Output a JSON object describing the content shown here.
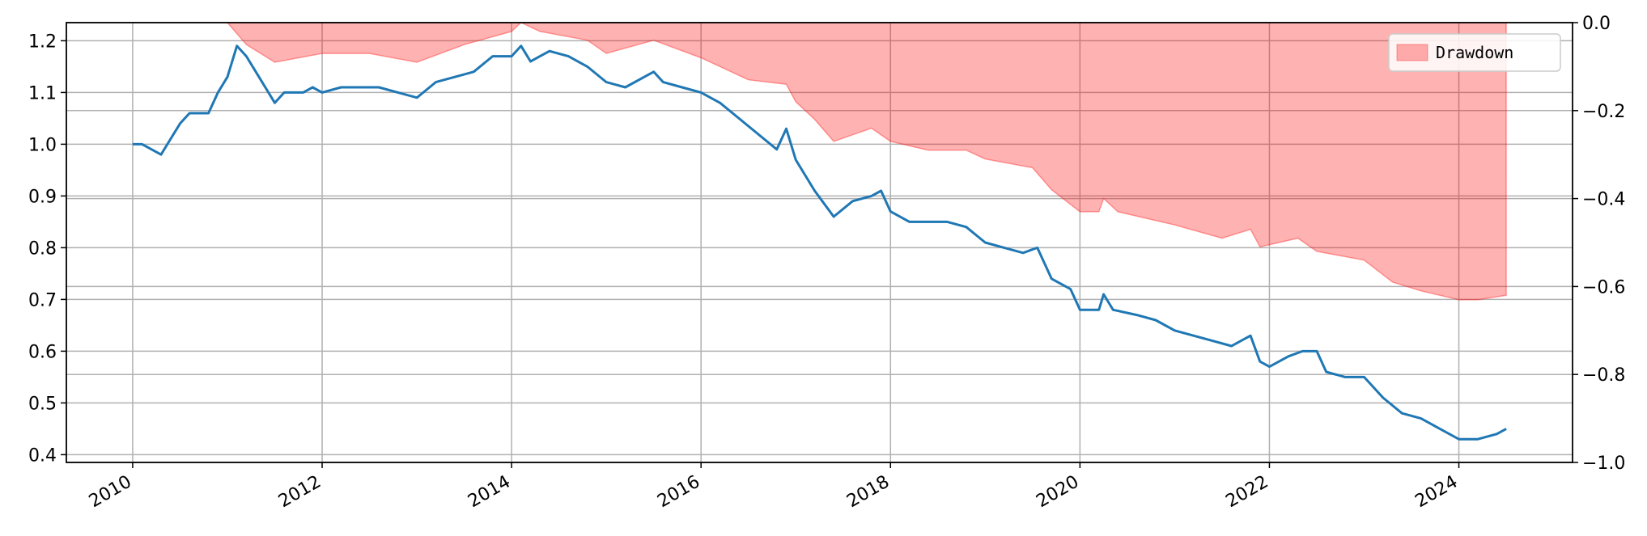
{
  "chart_data": {
    "type": "line",
    "title": "",
    "xlabel": "",
    "ylabel": "",
    "x_range": [
      2009.3,
      2025.2
    ],
    "x_ticks": [
      2010,
      2012,
      2014,
      2016,
      2018,
      2020,
      2022,
      2024
    ],
    "x_tick_labels": [
      "2010",
      "2012",
      "2014",
      "2016",
      "2018",
      "2020",
      "2022",
      "2024"
    ],
    "ylim_left": [
      0.385,
      1.235
    ],
    "y_ticks_left": [
      0.4,
      0.5,
      0.6,
      0.7,
      0.8,
      0.9,
      1.0,
      1.1,
      1.2
    ],
    "y_tick_labels_left": [
      "0.4",
      "0.5",
      "0.6",
      "0.7",
      "0.8",
      "0.9",
      "1.0",
      "1.1",
      "1.2"
    ],
    "ylim_right": [
      -1.0,
      0.0
    ],
    "y_ticks_right": [
      0.0,
      -0.2,
      -0.4,
      -0.6,
      -0.8,
      -1.0
    ],
    "y_tick_labels_right": [
      "0.0",
      "−0.2",
      "−0.4",
      "−0.6",
      "−0.8",
      "−1.0"
    ],
    "grid": true,
    "legend": {
      "position": "top-right",
      "entries": [
        "Drawdown"
      ]
    },
    "series": [
      {
        "axis": "left",
        "kind": "line",
        "color": "#1f77b4",
        "points": [
          [
            2010.0,
            1.0
          ],
          [
            2010.1,
            1.0
          ],
          [
            2010.2,
            0.99
          ],
          [
            2010.3,
            0.98
          ],
          [
            2010.4,
            1.01
          ],
          [
            2010.5,
            1.04
          ],
          [
            2010.6,
            1.06
          ],
          [
            2010.8,
            1.06
          ],
          [
            2010.9,
            1.1
          ],
          [
            2011.0,
            1.13
          ],
          [
            2011.1,
            1.19
          ],
          [
            2011.2,
            1.17
          ],
          [
            2011.3,
            1.14
          ],
          [
            2011.4,
            1.11
          ],
          [
            2011.5,
            1.08
          ],
          [
            2011.6,
            1.1
          ],
          [
            2011.8,
            1.1
          ],
          [
            2011.9,
            1.11
          ],
          [
            2012.0,
            1.1
          ],
          [
            2012.2,
            1.11
          ],
          [
            2012.4,
            1.11
          ],
          [
            2012.6,
            1.11
          ],
          [
            2012.8,
            1.1
          ],
          [
            2013.0,
            1.09
          ],
          [
            2013.2,
            1.12
          ],
          [
            2013.4,
            1.13
          ],
          [
            2013.6,
            1.14
          ],
          [
            2013.8,
            1.17
          ],
          [
            2014.0,
            1.17
          ],
          [
            2014.1,
            1.19
          ],
          [
            2014.2,
            1.16
          ],
          [
            2014.3,
            1.17
          ],
          [
            2014.4,
            1.18
          ],
          [
            2014.6,
            1.17
          ],
          [
            2014.8,
            1.15
          ],
          [
            2015.0,
            1.12
          ],
          [
            2015.2,
            1.11
          ],
          [
            2015.4,
            1.13
          ],
          [
            2015.5,
            1.14
          ],
          [
            2015.6,
            1.12
          ],
          [
            2015.8,
            1.11
          ],
          [
            2016.0,
            1.1
          ],
          [
            2016.2,
            1.08
          ],
          [
            2016.4,
            1.05
          ],
          [
            2016.6,
            1.02
          ],
          [
            2016.8,
            0.99
          ],
          [
            2016.9,
            1.03
          ],
          [
            2017.0,
            0.97
          ],
          [
            2017.2,
            0.91
          ],
          [
            2017.4,
            0.86
          ],
          [
            2017.6,
            0.89
          ],
          [
            2017.8,
            0.9
          ],
          [
            2017.9,
            0.91
          ],
          [
            2018.0,
            0.87
          ],
          [
            2018.2,
            0.85
          ],
          [
            2018.4,
            0.85
          ],
          [
            2018.6,
            0.85
          ],
          [
            2018.8,
            0.84
          ],
          [
            2019.0,
            0.81
          ],
          [
            2019.2,
            0.8
          ],
          [
            2019.4,
            0.79
          ],
          [
            2019.55,
            0.8
          ],
          [
            2019.7,
            0.74
          ],
          [
            2019.9,
            0.72
          ],
          [
            2020.0,
            0.68
          ],
          [
            2020.2,
            0.68
          ],
          [
            2020.25,
            0.71
          ],
          [
            2020.35,
            0.68
          ],
          [
            2020.6,
            0.67
          ],
          [
            2020.8,
            0.66
          ],
          [
            2021.0,
            0.64
          ],
          [
            2021.2,
            0.63
          ],
          [
            2021.4,
            0.62
          ],
          [
            2021.6,
            0.61
          ],
          [
            2021.8,
            0.63
          ],
          [
            2021.9,
            0.58
          ],
          [
            2022.0,
            0.57
          ],
          [
            2022.2,
            0.59
          ],
          [
            2022.35,
            0.6
          ],
          [
            2022.5,
            0.6
          ],
          [
            2022.6,
            0.56
          ],
          [
            2022.8,
            0.55
          ],
          [
            2023.0,
            0.55
          ],
          [
            2023.2,
            0.51
          ],
          [
            2023.4,
            0.48
          ],
          [
            2023.6,
            0.47
          ],
          [
            2023.8,
            0.45
          ],
          [
            2024.0,
            0.43
          ],
          [
            2024.2,
            0.43
          ],
          [
            2024.4,
            0.44
          ],
          [
            2024.5,
            0.45
          ]
        ]
      },
      {
        "axis": "right",
        "kind": "area",
        "name": "Drawdown",
        "color": "#ff0000",
        "fill_opacity": 0.3,
        "points": [
          [
            2010.0,
            0.0
          ],
          [
            2010.5,
            0.0
          ],
          [
            2011.0,
            0.0
          ],
          [
            2011.2,
            -0.05
          ],
          [
            2011.5,
            -0.09
          ],
          [
            2012.0,
            -0.07
          ],
          [
            2012.5,
            -0.07
          ],
          [
            2013.0,
            -0.09
          ],
          [
            2013.5,
            -0.05
          ],
          [
            2014.0,
            -0.02
          ],
          [
            2014.1,
            0.0
          ],
          [
            2014.3,
            -0.02
          ],
          [
            2014.8,
            -0.04
          ],
          [
            2015.0,
            -0.07
          ],
          [
            2015.5,
            -0.04
          ],
          [
            2016.0,
            -0.08
          ],
          [
            2016.5,
            -0.13
          ],
          [
            2016.9,
            -0.14
          ],
          [
            2017.0,
            -0.18
          ],
          [
            2017.2,
            -0.22
          ],
          [
            2017.4,
            -0.27
          ],
          [
            2017.8,
            -0.24
          ],
          [
            2018.0,
            -0.27
          ],
          [
            2018.4,
            -0.29
          ],
          [
            2018.8,
            -0.29
          ],
          [
            2019.0,
            -0.31
          ],
          [
            2019.5,
            -0.33
          ],
          [
            2019.7,
            -0.38
          ],
          [
            2020.0,
            -0.43
          ],
          [
            2020.2,
            -0.43
          ],
          [
            2020.25,
            -0.4
          ],
          [
            2020.4,
            -0.43
          ],
          [
            2021.0,
            -0.46
          ],
          [
            2021.5,
            -0.49
          ],
          [
            2021.8,
            -0.47
          ],
          [
            2021.9,
            -0.51
          ],
          [
            2022.3,
            -0.49
          ],
          [
            2022.5,
            -0.52
          ],
          [
            2023.0,
            -0.54
          ],
          [
            2023.3,
            -0.59
          ],
          [
            2023.6,
            -0.61
          ],
          [
            2024.0,
            -0.63
          ],
          [
            2024.2,
            -0.63
          ],
          [
            2024.5,
            -0.62
          ]
        ]
      }
    ]
  }
}
